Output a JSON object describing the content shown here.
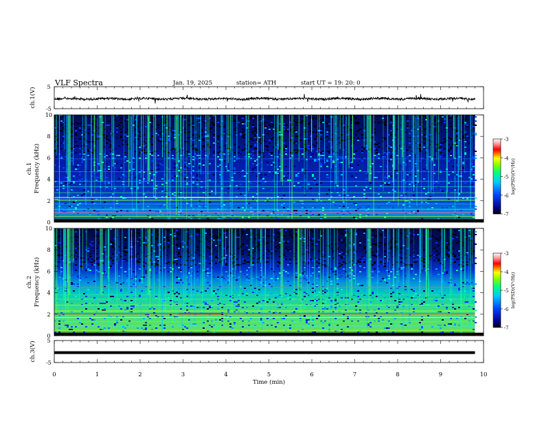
{
  "header": {
    "title": "VLF  Spectra",
    "date": "Jan. 19, 2025",
    "station": "station= ATH",
    "start": "start  UT  =    19: 20: 0"
  },
  "chart_data": [
    {
      "type": "line",
      "panel": "ch1_waveform",
      "ylabel": "ch.1(V)",
      "ylim": [
        -5,
        5
      ],
      "yticks": [
        "5",
        "-5"
      ],
      "xlim": [
        0,
        10
      ],
      "description_values": {
        "baseline_v": -0.5,
        "noise_amplitude_v": 1.2
      }
    },
    {
      "type": "heatmap",
      "panel": "ch1_spectrogram",
      "ylabel": "ch.1\nFrequency (kHz)",
      "ylabel_line1": "ch.1",
      "ylabel_line2": "Frequency (kHz)",
      "ylim": [
        0,
        10
      ],
      "yticks": [
        "0",
        "2",
        "4",
        "6",
        "8",
        "10"
      ],
      "xlim": [
        0,
        10
      ],
      "data_end_min": 9.8,
      "colorbar": {
        "label": "log(PSD)(V²/Hz)",
        "range": [
          -7,
          -3
        ],
        "ticks": [
          "-3",
          "-4",
          "-5",
          "-6",
          "-7"
        ]
      }
    },
    {
      "type": "heatmap",
      "panel": "ch2_spectrogram",
      "ylabel_line1": "ch.2",
      "ylabel_line2": "Frequency (kHz)",
      "ylim": [
        0,
        10
      ],
      "yticks": [
        "0",
        "2",
        "4",
        "6",
        "8",
        "10"
      ],
      "xlim": [
        0,
        10
      ],
      "data_end_min": 9.8,
      "colorbar": {
        "label": "log(PSD)(V²/Hz)",
        "range": [
          -7,
          -3
        ],
        "ticks": [
          "-3",
          "-4",
          "-5",
          "-6",
          "-7"
        ]
      }
    },
    {
      "type": "line",
      "panel": "ch3_waveform",
      "ylabel": "ch.3(V)",
      "ylim": [
        -5,
        5
      ],
      "yticks": [
        "5",
        "-5"
      ],
      "xlim": [
        0,
        10
      ],
      "xlabel": "Time (min)",
      "xticks": [
        "0",
        "1",
        "2",
        "3",
        "4",
        "5",
        "6",
        "7",
        "8",
        "9",
        "10"
      ],
      "description_values": {
        "baseline_v": -0.5
      }
    }
  ]
}
